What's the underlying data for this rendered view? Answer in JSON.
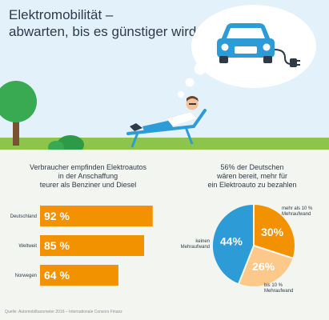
{
  "title": {
    "line1": "Elektromobilität –",
    "line2": "abwarten, bis es günstiger wird"
  },
  "bar_caption": {
    "line1": "Verbraucher empfinden Elektroautos",
    "line2": "in der Anschaffung",
    "line3": "teurer als Benziner und Diesel"
  },
  "pie_caption": {
    "line1": "56% der Deutschen",
    "line2": "wären bereit, mehr für",
    "line3": "ein Elektroauto zu bezahlen"
  },
  "source": "Quelle: Automobilbarometer 2016 – Internationale Consors Finanz",
  "colors": {
    "orange": "#f39200",
    "light_orange": "#fcc98a",
    "blue": "#2d9bd6",
    "sky": "#e3f1fa",
    "grass": "#8dc44b",
    "tree": "#3aaa52"
  },
  "chart_data": [
    {
      "type": "bar",
      "orientation": "horizontal",
      "categories": [
        "Deutschland",
        "Weltweit",
        "Norwegen"
      ],
      "values": [
        92,
        85,
        64
      ],
      "value_labels": [
        "92 %",
        "85 %",
        "64 %"
      ],
      "unit": "%",
      "xlim": [
        0,
        100
      ]
    },
    {
      "type": "pie",
      "slices": [
        {
          "label": "mehr als 10 % Mehraufwand",
          "label_line1": "mehr als 10 %",
          "label_line2": "Mehraufwand",
          "value": 30,
          "value_label": "30%",
          "color": "#f39200"
        },
        {
          "label": "bis 10 % Mehraufwand",
          "label_line1": "bis 10 %",
          "label_line2": "Mehraufwand",
          "value": 26,
          "value_label": "26%",
          "color": "#fcc98a"
        },
        {
          "label": "keinen Mehraufwand",
          "label_line1": "keinen",
          "label_line2": "Mehraufwand",
          "value": 44,
          "value_label": "44%",
          "color": "#2d9bd6"
        }
      ]
    }
  ]
}
